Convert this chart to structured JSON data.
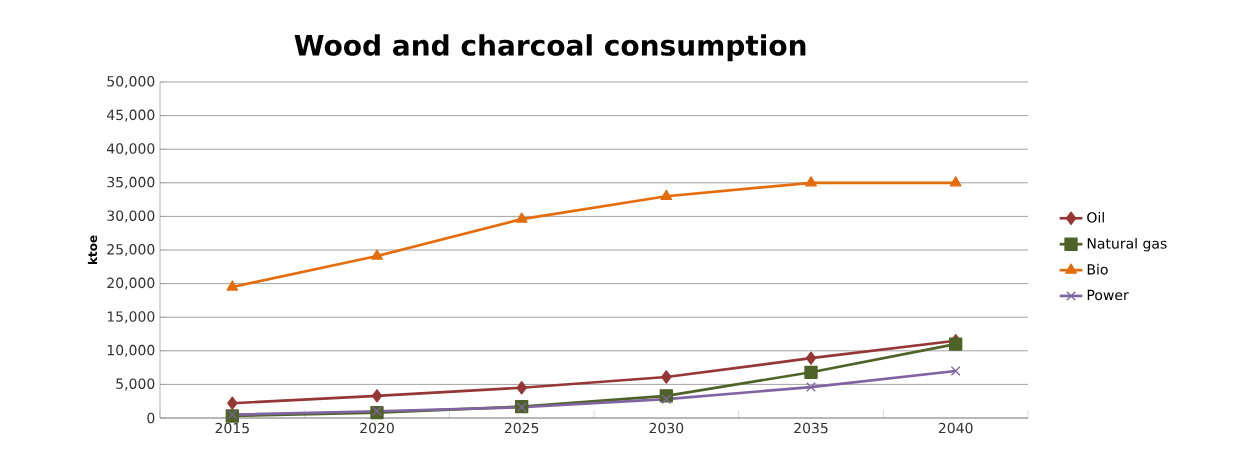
{
  "chart_data": {
    "type": "line",
    "title": "Wood and charcoal consumption",
    "ylabel": "ktoe",
    "categories": [
      "2015",
      "2020",
      "2025",
      "2030",
      "2035",
      "2040"
    ],
    "series": [
      {
        "name": "Oil",
        "color": "#953735",
        "marker": "diamond",
        "values": [
          2200,
          3300,
          4500,
          6100,
          8900,
          11500
        ]
      },
      {
        "name": "Natural gas",
        "color": "#4f6228",
        "marker": "square",
        "values": [
          300,
          800,
          1700,
          3300,
          6800,
          11000
        ]
      },
      {
        "name": "Bio",
        "color": "#e46c0a",
        "marker": "triangle",
        "values": [
          19500,
          24100,
          29600,
          33000,
          35000,
          35000
        ]
      },
      {
        "name": "Power",
        "color": "#8064a2",
        "marker": "cross",
        "values": [
          500,
          1000,
          1600,
          2800,
          4600,
          7000
        ]
      }
    ],
    "ylim": [
      0,
      50000
    ],
    "yticks": [
      {
        "value": 0,
        "label": "0"
      },
      {
        "value": 5000,
        "label": "5,000"
      },
      {
        "value": 10000,
        "label": "10,000"
      },
      {
        "value": 15000,
        "label": "15,000"
      },
      {
        "value": 20000,
        "label": "20,000"
      },
      {
        "value": 25000,
        "label": "25,000"
      },
      {
        "value": 30000,
        "label": "30,000"
      },
      {
        "value": 35000,
        "label": "35,000"
      },
      {
        "value": 40000,
        "label": "40,000"
      },
      {
        "value": 45000,
        "label": "45,000"
      },
      {
        "value": 50000,
        "label": "50,000"
      }
    ],
    "grid": "y",
    "legend": "right",
    "line_style": "solid"
  }
}
